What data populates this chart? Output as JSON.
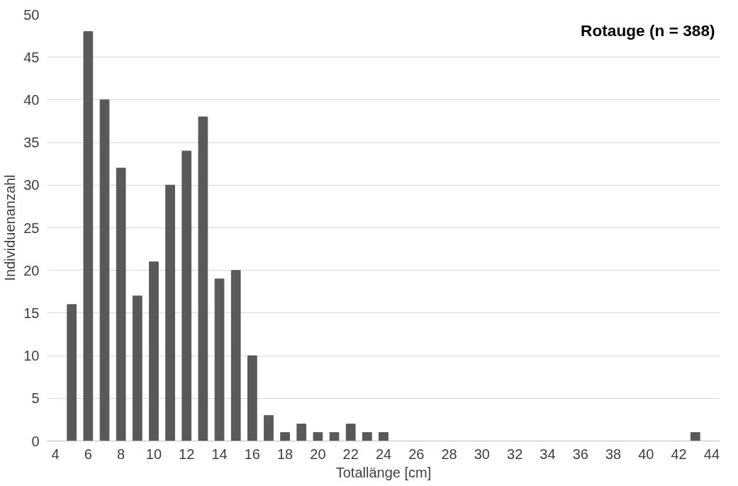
{
  "chart_data": {
    "type": "bar",
    "title": "Rotauge (n = 388)",
    "xlabel": "Totallänge [cm]",
    "ylabel": "Individuenanzahl",
    "categories": [
      "4",
      null,
      "6",
      null,
      "8",
      null,
      "10",
      null,
      "12",
      null,
      "14",
      null,
      "16",
      null,
      "18",
      null,
      "20",
      null,
      "22",
      null,
      "24",
      null,
      "26",
      null,
      "28",
      null,
      "30",
      null,
      "32",
      null,
      "34",
      null,
      "36",
      null,
      "38",
      null,
      "40",
      null,
      "42",
      null,
      "44"
    ],
    "values": [
      0,
      16,
      48,
      40,
      32,
      17,
      21,
      30,
      34,
      38,
      19,
      20,
      10,
      3,
      1,
      2,
      1,
      1,
      2,
      1,
      1,
      0,
      0,
      0,
      0,
      0,
      0,
      0,
      0,
      0,
      0,
      0,
      0,
      0,
      0,
      0,
      0,
      0,
      0,
      1,
      0
    ],
    "color": "#595959",
    "ylim": [
      0,
      50
    ],
    "yticks": [
      0,
      5,
      10,
      15,
      20,
      25,
      30,
      35,
      40,
      45,
      50
    ],
    "grid": "y"
  }
}
